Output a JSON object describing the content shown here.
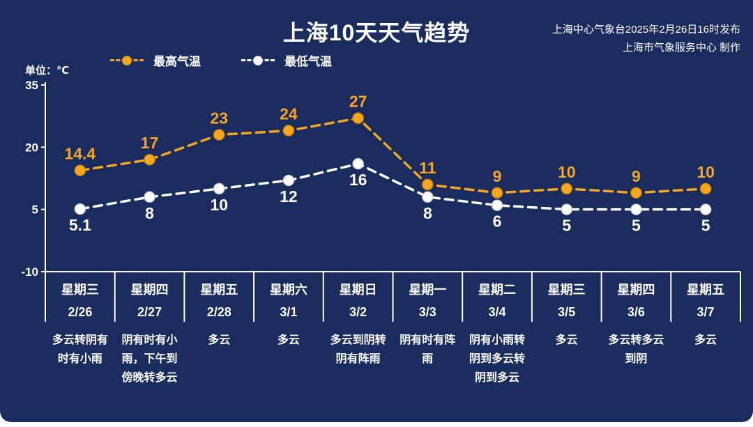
{
  "header": {
    "title": "上海10天天气趋势",
    "source_line1": "上海中心气象台2025年2月26日16时发布",
    "source_line2": "上海市气象服务中心 制作"
  },
  "legend": {
    "high_label": "最高气温",
    "low_label": "最低气温"
  },
  "unit_label": "单位：℃",
  "colors": {
    "background": "#1a2b5e",
    "high": "#f5a623",
    "low": "#ffffff",
    "text": "#ffffff"
  },
  "chart_data": {
    "type": "line",
    "title": "上海10天天气趋势",
    "x": [
      "2/26",
      "2/27",
      "2/28",
      "3/1",
      "3/2",
      "3/3",
      "3/4",
      "3/5",
      "3/6",
      "3/7"
    ],
    "weekdays": [
      "星期三",
      "星期四",
      "星期五",
      "星期六",
      "星期日",
      "星期一",
      "星期二",
      "星期三",
      "星期四",
      "星期五"
    ],
    "series": [
      {
        "name": "最高气温",
        "color": "#f5a623",
        "values": [
          14.4,
          17,
          23,
          24,
          27,
          11,
          9,
          10,
          9,
          10
        ]
      },
      {
        "name": "最低气温",
        "color": "#ffffff",
        "values": [
          5.1,
          8,
          10,
          12,
          16,
          8,
          6,
          5,
          5,
          5
        ]
      }
    ],
    "descriptions": [
      "多云转阴有时有小雨",
      "阴有时有小雨，下午到傍晚转多云",
      "多云",
      "多云",
      "多云到阴转阴有阵雨",
      "阴有时有阵雨",
      "阴有小雨转阴到多云转阴到多云",
      "多云",
      "多云转多云到阴",
      "多云"
    ],
    "ylabel": "单位：℃",
    "yticks": [
      35,
      20,
      5,
      -10
    ],
    "ylim": [
      -10,
      35
    ],
    "grid": false,
    "legend_position": "top-left"
  }
}
